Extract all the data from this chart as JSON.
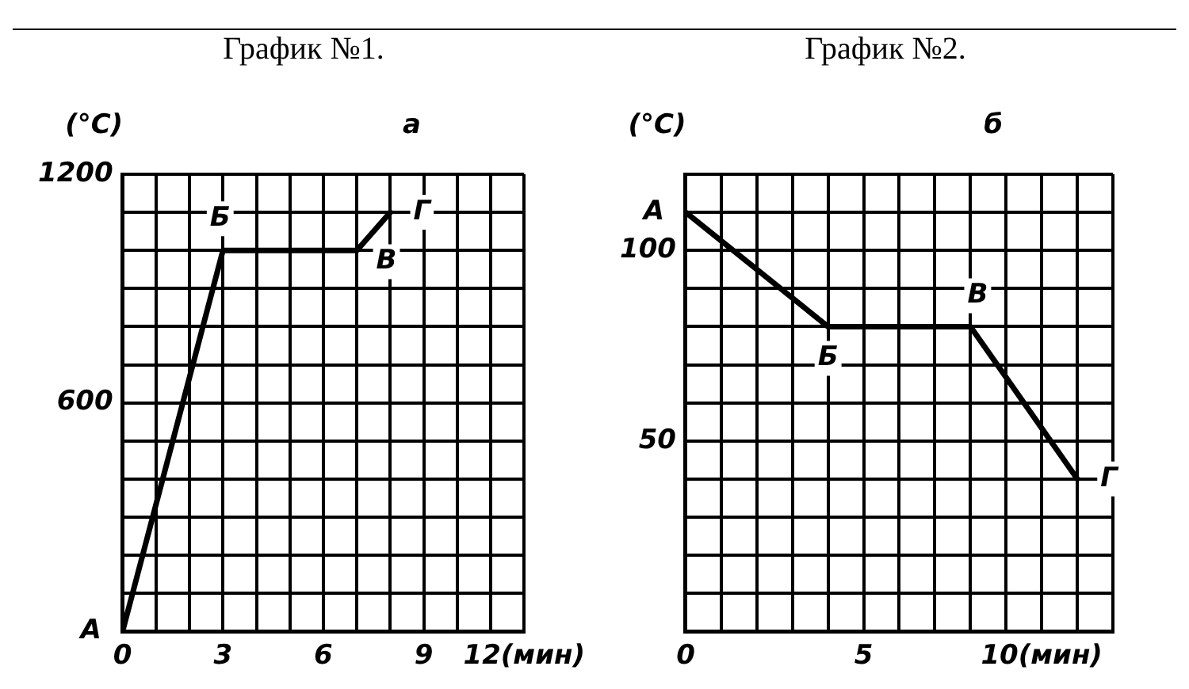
{
  "chart_data": [
    {
      "type": "line",
      "title": "График №1.",
      "ylabel": "(°C)",
      "annotations": [
        "а",
        {
          "text": "А",
          "x": 0,
          "y": 0
        },
        {
          "text": "Б",
          "x": 3,
          "y": 1000
        },
        {
          "text": "В",
          "x": 7,
          "y": 1000
        },
        {
          "text": "Г",
          "x": 8,
          "y": 1100
        }
      ],
      "series": [
        {
          "color": "#000000",
          "x": [
            0,
            3,
            7,
            8
          ],
          "values": [
            0,
            1000,
            1000,
            1100
          ]
        }
      ],
      "xlim": [
        0,
        12
      ],
      "xticks": [
        0,
        {
          "value": 1,
          "label": null
        },
        {
          "value": 2,
          "label": null
        },
        3,
        {
          "value": 4,
          "label": null
        },
        {
          "value": 5,
          "label": null
        },
        6,
        {
          "value": 7,
          "label": null
        },
        {
          "value": 8,
          "label": null
        },
        9,
        {
          "value": 10,
          "label": null
        },
        {
          "value": 11,
          "label": null
        },
        {
          "value": 12,
          "label": "12(мин)"
        }
      ],
      "ylim": [
        0,
        1200
      ],
      "yticks": [
        {
          "value": 0,
          "label": null
        },
        {
          "value": 100,
          "label": null
        },
        {
          "value": 200,
          "label": null
        },
        {
          "value": 300,
          "label": null
        },
        {
          "value": 400,
          "label": null
        },
        {
          "value": 500,
          "label": null
        },
        600,
        {
          "value": 700,
          "label": null
        },
        {
          "value": 800,
          "label": null
        },
        {
          "value": 900,
          "label": null
        },
        {
          "value": 1000,
          "label": null
        },
        {
          "value": 1100,
          "label": null
        },
        1200
      ],
      "grid": true,
      "marker": "none",
      "line_style": "solid"
    },
    {
      "type": "line",
      "title": "График №2.",
      "ylabel": "(°C)",
      "annotations": [
        "б",
        {
          "text": "А",
          "x": 0,
          "y": 110
        },
        {
          "text": "Б",
          "x": 4,
          "y": 80
        },
        {
          "text": "В",
          "x": 8,
          "y": 80
        },
        {
          "text": "Г",
          "x": 11,
          "y": 40
        }
      ],
      "series": [
        {
          "color": "#000000",
          "x": [
            0,
            4,
            8,
            11
          ],
          "values": [
            110,
            80,
            80,
            40
          ]
        }
      ],
      "xlim": [
        0,
        12
      ],
      "xticks": [
        0,
        {
          "value": 1,
          "label": null
        },
        {
          "value": 2,
          "label": null
        },
        {
          "value": 3,
          "label": null
        },
        {
          "value": 4,
          "label": null
        },
        5,
        {
          "value": 6,
          "label": null
        },
        {
          "value": 7,
          "label": null
        },
        {
          "value": 8,
          "label": null
        },
        {
          "value": 9,
          "label": null
        },
        {
          "value": 10,
          "label": "10(мин)"
        },
        {
          "value": 11,
          "label": null
        },
        {
          "value": 12,
          "label": null
        }
      ],
      "ylim": [
        0,
        120
      ],
      "yticks": [
        {
          "value": 0,
          "label": null
        },
        {
          "value": 10,
          "label": null
        },
        {
          "value": 20,
          "label": null
        },
        {
          "value": 30,
          "label": null
        },
        {
          "value": 40,
          "label": null
        },
        50,
        {
          "value": 60,
          "label": null
        },
        {
          "value": 70,
          "label": null
        },
        {
          "value": 80,
          "label": null
        },
        {
          "value": 90,
          "label": null
        },
        100,
        {
          "value": 110,
          "label": null
        },
        {
          "value": 120,
          "label": null
        }
      ],
      "grid": true,
      "marker": "none",
      "line_style": "solid"
    }
  ]
}
